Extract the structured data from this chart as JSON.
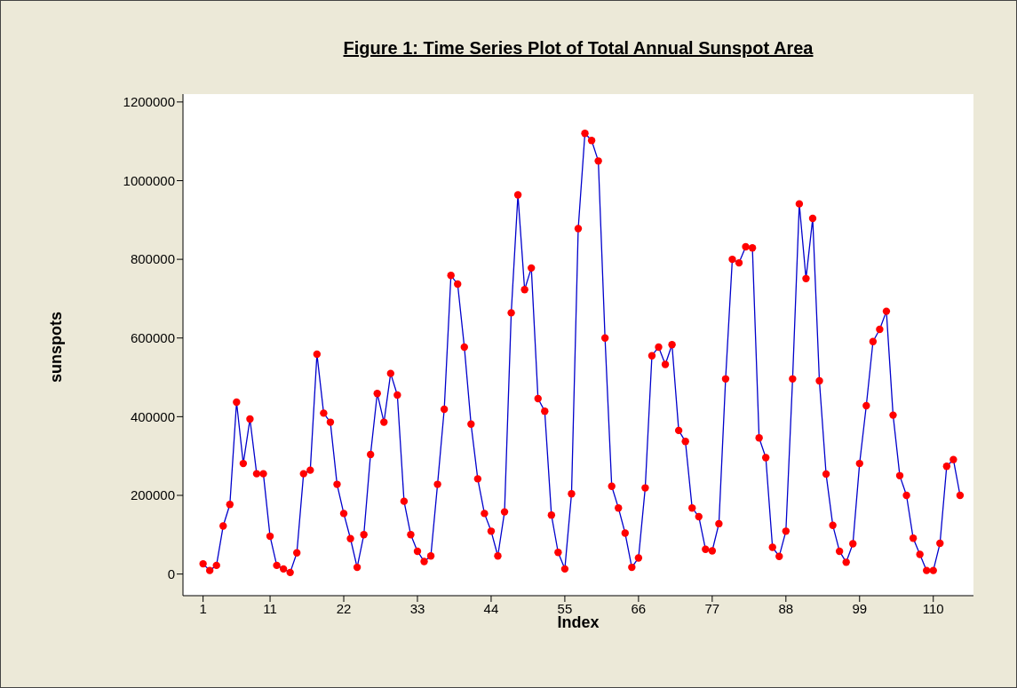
{
  "chart_data": {
    "type": "line",
    "title": "Figure 1: Time Series Plot of Total Annual Sunspot Area",
    "xlabel": "Index",
    "ylabel": "sunspots",
    "x": [
      1,
      2,
      3,
      4,
      5,
      6,
      7,
      8,
      9,
      10,
      11,
      12,
      13,
      14,
      15,
      16,
      17,
      18,
      19,
      20,
      21,
      22,
      23,
      24,
      25,
      26,
      27,
      28,
      29,
      30,
      31,
      32,
      33,
      34,
      35,
      36,
      37,
      38,
      39,
      40,
      41,
      42,
      43,
      44,
      45,
      46,
      47,
      48,
      49,
      50,
      51,
      52,
      53,
      54,
      55,
      56,
      57,
      58,
      59,
      60,
      61,
      62,
      63,
      64,
      65,
      66,
      67,
      68,
      69,
      70,
      71,
      72,
      73,
      74,
      75,
      76,
      77,
      78,
      79,
      80,
      81,
      82,
      83,
      84,
      85,
      86,
      87,
      88,
      89,
      90,
      91,
      92,
      93,
      94,
      95,
      96,
      97,
      98,
      99,
      100,
      101,
      102,
      103,
      104,
      105,
      106,
      107,
      108,
      109,
      110,
      111,
      112,
      113,
      114
    ],
    "series": [
      {
        "color": "#0000cc",
        "colors": [
          "#ff0000",
          "#ff0000",
          "#ff0000",
          "#ff0000",
          "#ff0000",
          "#ff0000",
          "#ff0000",
          "#ff0000",
          "#ff0000",
          "#ff0000",
          "#ff0000",
          "#ff0000",
          "#ff0000",
          "#ff0000",
          "#ff0000",
          "#ff0000",
          "#ff0000",
          "#ff0000",
          "#ff0000",
          "#ff0000",
          "#ff0000",
          "#ff0000",
          "#ff0000",
          "#ff0000",
          "#ff0000",
          "#ff0000",
          "#ff0000",
          "#ff0000",
          "#ff0000",
          "#ff0000",
          "#ff0000",
          "#ff0000",
          "#ff0000",
          "#ff0000",
          "#ff0000",
          "#ff0000",
          "#ff0000",
          "#ff0000",
          "#ff0000",
          "#ff0000",
          "#ff0000",
          "#ff0000",
          "#ff0000",
          "#ff0000",
          "#ff0000",
          "#ff0000",
          "#ff0000",
          "#ff0000",
          "#ff0000",
          "#ff0000",
          "#ff0000",
          "#ff0000",
          "#ff0000",
          "#ff0000",
          "#ff0000",
          "#ff0000",
          "#ff0000",
          "#ff0000",
          "#ff0000",
          "#ff0000",
          "#ff0000",
          "#ff0000",
          "#ff0000",
          "#ff0000",
          "#ff0000",
          "#ff0000",
          "#ff0000",
          "#ff0000",
          "#ff0000",
          "#ff0000",
          "#ff0000",
          "#ff0000",
          "#ff0000",
          "#ff0000",
          "#ff0000",
          "#ff0000",
          "#ff0000",
          "#ff0000",
          "#ff0000",
          "#ff0000",
          "#ff0000",
          "#ff0000",
          "#ff0000",
          "#ff0000",
          "#ff0000",
          "#ff0000",
          "#ff0000",
          "#ff0000",
          "#ff0000",
          "#ff0000",
          "#ff0000",
          "#ff0000",
          "#ff0000",
          "#ff0000",
          "#ff0000",
          "#ff0000",
          "#ff0000",
          "#ff0000",
          "#ff0000",
          "#ff0000",
          "#ff0000",
          "#ff0000",
          "#ff0000",
          "#ff0000",
          "#ff0000",
          "#ff0000",
          "#ff0000",
          "#ff0000",
          "#ff0000",
          "#ff0000",
          "#ff0000",
          "#ff0000",
          "#ff0000",
          "#ff0000"
        ],
        "values": [
          26000,
          9000,
          22000,
          122000,
          177000,
          437000,
          281000,
          394000,
          255000,
          255000,
          96000,
          22000,
          13000,
          4000,
          54000,
          255000,
          264000,
          559000,
          409000,
          386000,
          228000,
          154000,
          90000,
          17000,
          100000,
          304000,
          459000,
          386000,
          510000,
          455000,
          185000,
          100000,
          58000,
          32000,
          46000,
          228000,
          419000,
          759000,
          737000,
          577000,
          381000,
          242000,
          154000,
          109000,
          46000,
          158000,
          664000,
          964000,
          723000,
          778000,
          446000,
          414000,
          150000,
          55000,
          13000,
          204000,
          878000,
          1120000,
          1102000,
          1050000,
          600000,
          223000,
          168000,
          104000,
          17000,
          41000,
          219000,
          555000,
          577000,
          533000,
          583000,
          365000,
          337000,
          168000,
          146000,
          63000,
          59000,
          128000,
          496000,
          800000,
          791000,
          832000,
          829000,
          346000,
          296000,
          68000,
          45000,
          109000,
          496000,
          941000,
          751000,
          904000,
          491000,
          254000,
          124000,
          58000,
          30000,
          77000,
          281000,
          428000,
          591000,
          622000,
          668000,
          404000,
          250000,
          200000,
          91000,
          50000,
          9000,
          9000,
          78000,
          274000,
          291000,
          200000
        ]
      }
    ],
    "xlim": [
      -2,
      116
    ],
    "xticks": [
      1,
      11,
      22,
      33,
      44,
      55,
      66,
      77,
      88,
      99,
      110
    ],
    "ylim": [
      -55000,
      1220000
    ],
    "yticks": [
      0,
      200000,
      400000,
      600000,
      800000,
      1000000,
      1200000
    ],
    "grid": false,
    "legend": false,
    "marker": "circle",
    "line_style": "solid"
  }
}
